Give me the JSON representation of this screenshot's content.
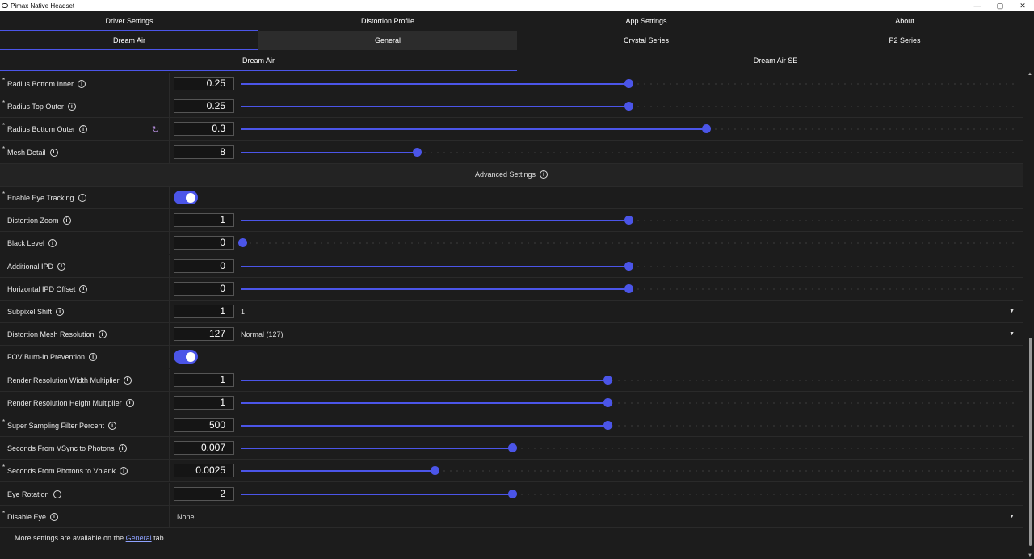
{
  "window": {
    "title": "Pimax Native Headset",
    "min": "—",
    "max": "▢",
    "close": "✕"
  },
  "tabs_main": [
    "Driver Settings",
    "Distortion Profile",
    "App Settings",
    "About"
  ],
  "tabs_model": [
    "Dream Air",
    "General",
    "Crystal Series",
    "P2 Series"
  ],
  "tabs_variant": [
    "Dream Air",
    "Dream Air SE"
  ],
  "rows": [
    {
      "label": "Radius Bottom Inner",
      "star": "*",
      "value": "0.25",
      "fraction": 0.5
    },
    {
      "label": "Radius Top Outer",
      "star": "*",
      "value": "0.25",
      "fraction": 0.5
    },
    {
      "label": "Radius Bottom Outer",
      "star": "*",
      "value": "0.3",
      "fraction": 0.6,
      "reset": "↻"
    },
    {
      "label": "Mesh Detail",
      "star": "*",
      "value": "8",
      "fraction": 0.227
    }
  ],
  "section": {
    "title": "Advanced Settings"
  },
  "adv_rows": [
    {
      "type": "toggle",
      "label": "Enable Eye Tracking",
      "star": "*"
    },
    {
      "type": "slider",
      "label": "Distortion Zoom",
      "value": "1",
      "fraction": 0.5
    },
    {
      "type": "slider",
      "label": "Black Level",
      "value": "0",
      "fraction": 0.0
    },
    {
      "type": "slider",
      "label": "Additional IPD",
      "value": "0",
      "fraction": 0.5
    },
    {
      "type": "slider",
      "label": "Horizontal IPD Offset",
      "value": "0",
      "fraction": 0.5
    },
    {
      "type": "select",
      "label": "Subpixel Shift",
      "value": "1",
      "selected": "1"
    },
    {
      "type": "select",
      "label": "Distortion Mesh Resolution",
      "value": "127",
      "selected": "Normal (127)"
    },
    {
      "type": "toggle",
      "label": "FOV Burn-In Prevention"
    },
    {
      "type": "slider",
      "label": "Render Resolution Width Multiplier",
      "value": "1",
      "fraction": 0.473
    },
    {
      "type": "slider",
      "label": "Render Resolution Height Multiplier",
      "value": "1",
      "fraction": 0.473
    },
    {
      "type": "slider",
      "label": "Super Sampling Filter Percent",
      "star": "*",
      "value": "500",
      "fraction": 0.473
    },
    {
      "type": "slider",
      "label": "Seconds From VSync to Photons",
      "value": "0.007",
      "fraction": 0.35
    },
    {
      "type": "slider",
      "label": "Seconds From Photons to Vblank",
      "star": "*",
      "value": "0.0025",
      "fraction": 0.25
    },
    {
      "type": "slider",
      "label": "Eye Rotation",
      "value": "2",
      "fraction": 0.35
    },
    {
      "type": "fullselect",
      "label": "Disable Eye",
      "star": "*",
      "selected": "None"
    }
  ],
  "footnote": {
    "before": "More settings are available on the ",
    "link": "General",
    "after": " tab."
  },
  "icons": {
    "info": "info-icon",
    "caret": "chevron-down-icon",
    "reset": "reset-icon"
  },
  "colors": {
    "accent": "#4b55e8",
    "reset": "#b18ad8"
  }
}
